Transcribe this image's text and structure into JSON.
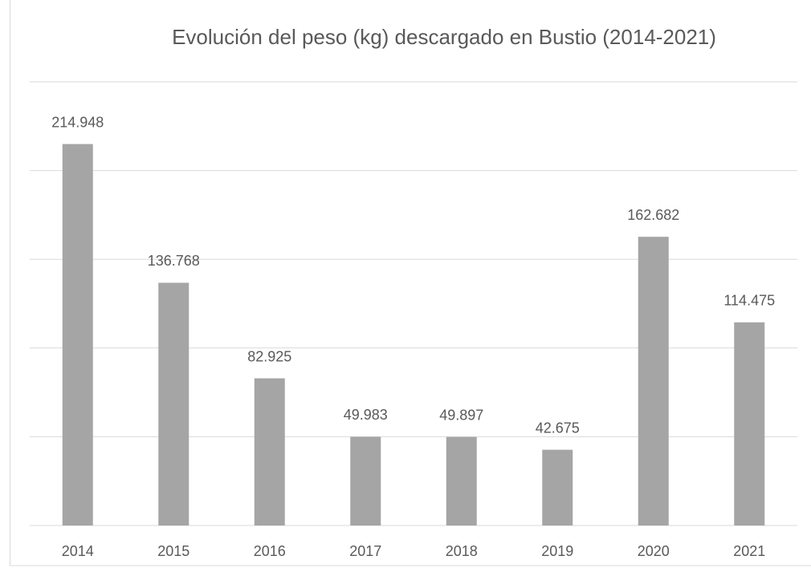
{
  "chart_data": {
    "type": "bar",
    "title": "Evolución del peso (kg) descargado en Bustio (2014-2021)",
    "categories": [
      "2014",
      "2015",
      "2016",
      "2017",
      "2018",
      "2019",
      "2020",
      "2021"
    ],
    "values": [
      214948,
      136768,
      82925,
      49983,
      49897,
      42675,
      162682,
      114475
    ],
    "value_labels": [
      "214.948",
      "136.768",
      "82.925",
      "49.983",
      "49.897",
      "42.675",
      "162.682",
      "114.475"
    ],
    "color": "#a5a5a5",
    "ylim": [
      0,
      250000
    ],
    "yticks": [
      0,
      50000,
      100000,
      150000,
      200000,
      250000
    ],
    "grid": true
  }
}
